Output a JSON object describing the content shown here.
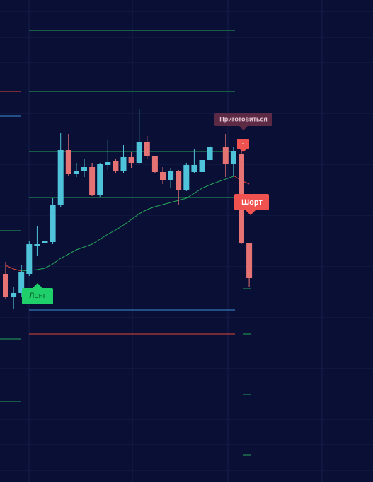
{
  "chart_data": {
    "type": "candlestick",
    "open": [
      294,
      261,
      267,
      294,
      334,
      337,
      339,
      391,
      469,
      435,
      439,
      445,
      406,
      448,
      453,
      439,
      459,
      451,
      481,
      460,
      438,
      426,
      439,
      413,
      438,
      438,
      455,
      null,
      473,
      449,
      463,
      338
    ],
    "high": [
      311,
      276,
      306,
      341,
      361,
      381,
      401,
      493,
      491,
      451,
      456,
      451,
      451,
      483,
      456,
      476,
      466,
      527,
      489,
      461,
      445,
      443,
      441,
      451,
      471,
      459,
      476,
      null,
      491,
      473,
      467,
      338
    ],
    "low": [
      259,
      244,
      261,
      291,
      319,
      336,
      336,
      389,
      433,
      431,
      431,
      404,
      403,
      441,
      437,
      436,
      443,
      449,
      456,
      436,
      421,
      415,
      391,
      411,
      436,
      435,
      453,
      null,
      431,
      433,
      336,
      276
    ],
    "close": [
      261,
      267,
      296,
      336,
      336,
      341,
      391,
      469,
      435,
      440,
      445,
      406,
      449,
      452,
      439,
      459,
      451,
      481,
      460,
      438,
      426,
      439,
      413,
      448,
      448,
      455,
      473,
      null,
      449,
      467,
      338,
      288
    ],
    "up_color": "#4fc3d9",
    "down_color": "#e57373",
    "ylim": [
      0,
      681
    ],
    "series": [
      {
        "color": "#26a65b",
        "values": [
          null,
          null,
          298,
          299,
          300,
          302,
          308,
          316,
          322,
          328,
          332,
          336,
          343,
          350,
          356,
          363,
          371,
          379,
          385,
          389,
          392,
          395,
          398,
          401,
          408,
          415,
          420,
          424,
          428,
          432,
          null,
          null
        ]
      },
      {
        "color": "#e0463c",
        "values": [
          306,
          301,
          298,
          null,
          null,
          null,
          null,
          null,
          null,
          null,
          null,
          null,
          null,
          null,
          null,
          null,
          null,
          null,
          null,
          null,
          null,
          null,
          null,
          null,
          null,
          null,
          null,
          null,
          null,
          433,
          426,
          421
        ]
      }
    ],
    "levels": [
      {
        "value": 638,
        "color": "#26a65b"
      },
      {
        "value": 552,
        "color": "#26a65b"
      },
      {
        "value": 467,
        "color": "#26a65b"
      },
      {
        "value": 402,
        "color": "#26a65b"
      },
      {
        "value": 243,
        "color": "#3d8ed8"
      },
      {
        "value": 209,
        "color": "#e0463c"
      }
    ],
    "left_marks": [
      {
        "value": 552,
        "color": "#e0463c"
      },
      {
        "value": 517,
        "color": "#3d8ed8"
      },
      {
        "value": 355,
        "color": "#26a65b"
      },
      {
        "value": 202,
        "color": "#26a65b"
      },
      {
        "value": 114,
        "color": "#26a65b"
      }
    ],
    "right_marks": [
      {
        "value": 273,
        "color": "#26a65b"
      },
      {
        "value": 209,
        "color": "#26a65b"
      },
      {
        "value": 124,
        "color": "#26a65b"
      },
      {
        "value": 38,
        "color": "#26a65b"
      }
    ],
    "annotations": {
      "prepare": "Приготовиться",
      "signal": "-",
      "short": "Шорт",
      "long": "Лонг"
    }
  }
}
